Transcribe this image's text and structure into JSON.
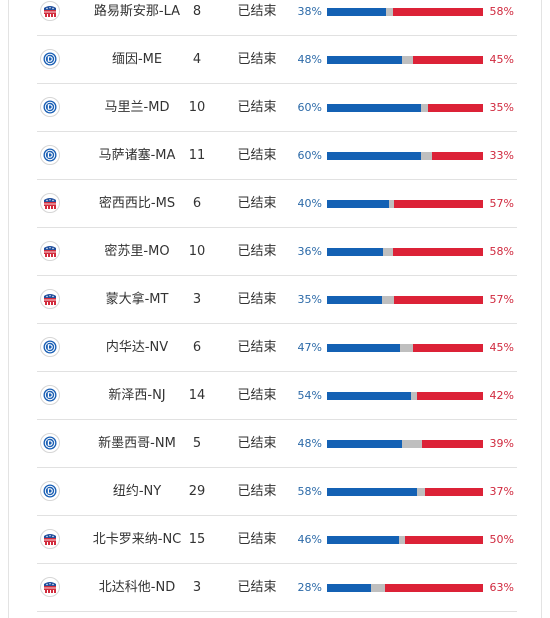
{
  "status_label": "已结束",
  "colors": {
    "democrat": "#1461b4",
    "republican": "#dc2237",
    "other": "#bfbfbf"
  },
  "rows": [
    {
      "state": "路易斯安那-LA",
      "votes": "8",
      "winner": "republican",
      "dem_pct": "38%",
      "rep_pct": "58%",
      "dem": 38,
      "rep": 58
    },
    {
      "state": "缅因-ME",
      "votes": "4",
      "winner": "democrat",
      "dem_pct": "48%",
      "rep_pct": "45%",
      "dem": 48,
      "rep": 45
    },
    {
      "state": "马里兰-MD",
      "votes": "10",
      "winner": "democrat",
      "dem_pct": "60%",
      "rep_pct": "35%",
      "dem": 60,
      "rep": 35
    },
    {
      "state": "马萨诸塞-MA",
      "votes": "11",
      "winner": "democrat",
      "dem_pct": "60%",
      "rep_pct": "33%",
      "dem": 60,
      "rep": 33
    },
    {
      "state": "密西西比-MS",
      "votes": "6",
      "winner": "republican",
      "dem_pct": "40%",
      "rep_pct": "57%",
      "dem": 40,
      "rep": 57
    },
    {
      "state": "密苏里-MO",
      "votes": "10",
      "winner": "republican",
      "dem_pct": "36%",
      "rep_pct": "58%",
      "dem": 36,
      "rep": 58
    },
    {
      "state": "蒙大拿-MT",
      "votes": "3",
      "winner": "republican",
      "dem_pct": "35%",
      "rep_pct": "57%",
      "dem": 35,
      "rep": 57
    },
    {
      "state": "内华达-NV",
      "votes": "6",
      "winner": "democrat",
      "dem_pct": "47%",
      "rep_pct": "45%",
      "dem": 47,
      "rep": 45
    },
    {
      "state": "新泽西-NJ",
      "votes": "14",
      "winner": "democrat",
      "dem_pct": "54%",
      "rep_pct": "42%",
      "dem": 54,
      "rep": 42
    },
    {
      "state": "新墨西哥-NM",
      "votes": "5",
      "winner": "democrat",
      "dem_pct": "48%",
      "rep_pct": "39%",
      "dem": 48,
      "rep": 39
    },
    {
      "state": "纽约-NY",
      "votes": "29",
      "winner": "democrat",
      "dem_pct": "58%",
      "rep_pct": "37%",
      "dem": 58,
      "rep": 37
    },
    {
      "state": "北卡罗来纳-NC",
      "votes": "15",
      "winner": "republican",
      "dem_pct": "46%",
      "rep_pct": "50%",
      "dem": 46,
      "rep": 50
    },
    {
      "state": "北达科他-ND",
      "votes": "3",
      "winner": "republican",
      "dem_pct": "28%",
      "rep_pct": "63%",
      "dem": 28,
      "rep": 63
    }
  ]
}
